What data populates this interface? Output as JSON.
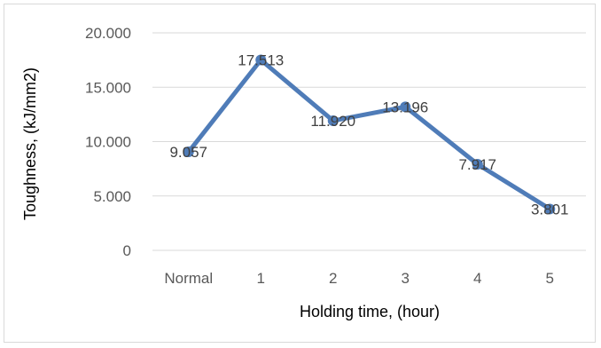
{
  "chart_data": {
    "type": "line",
    "title": "",
    "xlabel": "Holding time, (hour)",
    "ylabel": "Toughness, (kJ/mm2)",
    "categories": [
      "Normal",
      "1",
      "2",
      "3",
      "4",
      "5"
    ],
    "series": [
      {
        "values": [
          9.057,
          17.513,
          11.92,
          13.196,
          7.917,
          3.801
        ],
        "labels": [
          "9.057",
          "17.513",
          "11.920",
          "13.196",
          "7.917",
          "3.801"
        ]
      }
    ],
    "ylim": [
      0,
      20
    ],
    "yticks": [
      0,
      5,
      10,
      15,
      20
    ],
    "ytick_labels": [
      "0",
      "5.000",
      "10.000",
      "15.000",
      "20.000"
    ],
    "grid": true,
    "legend": "none",
    "colors": {
      "line": "#4f7cb8",
      "grid": "#d9d9d9",
      "tick_text": "#595959"
    }
  }
}
